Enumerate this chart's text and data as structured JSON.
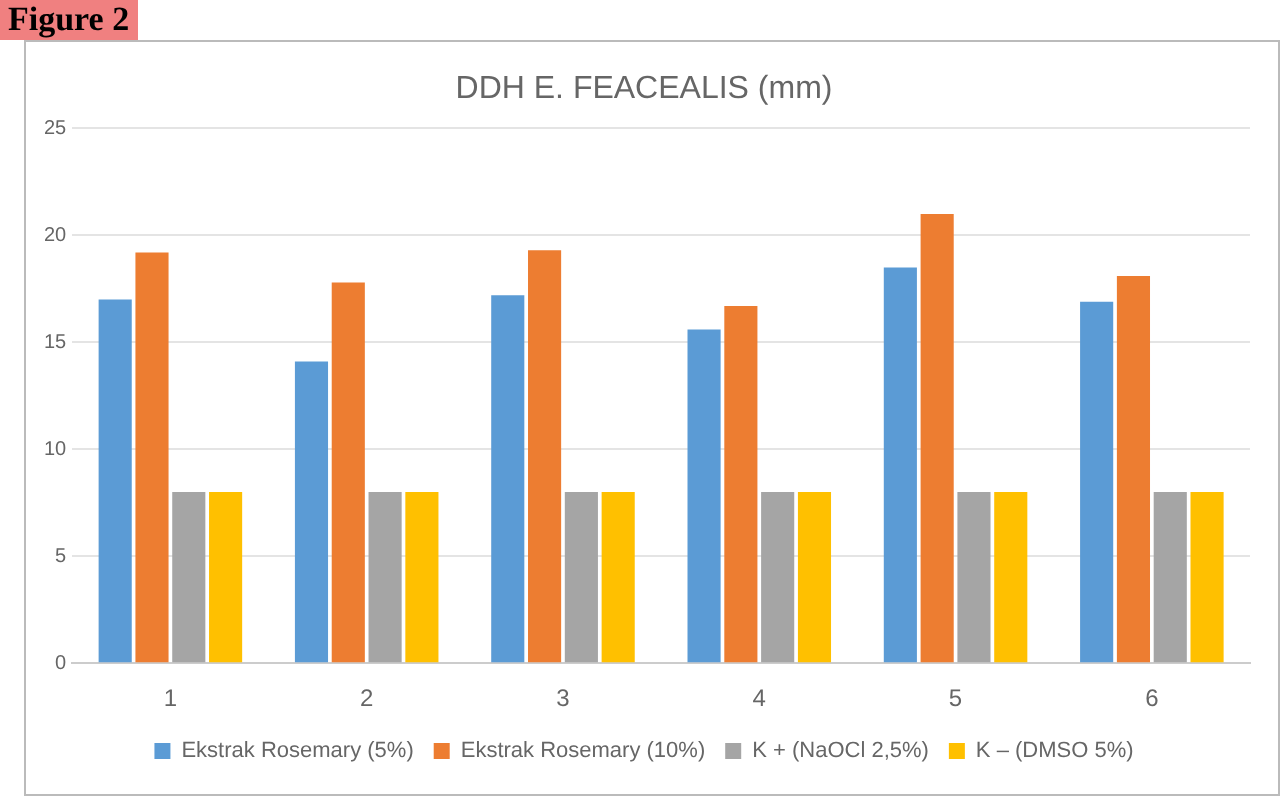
{
  "chart_data": {
    "type": "bar",
    "title": "DDH E. FEACEALIS (mm)",
    "annotations": [
      "Figure 2"
    ],
    "categories": [
      "1",
      "2",
      "3",
      "4",
      "5",
      "6"
    ],
    "series": [
      {
        "name": "Ekstrak Rosemary (5%)",
        "color": "#5b9bd5",
        "values": [
          17,
          14.1,
          17.2,
          15.6,
          18.5,
          16.9
        ]
      },
      {
        "name": "Ekstrak Rosemary (10%)",
        "color": "#ed7d31",
        "values": [
          19.2,
          17.8,
          19.3,
          16.7,
          21,
          18.1
        ]
      },
      {
        "name": "K + (NaOCl 2,5%)",
        "color": "#a5a5a5",
        "values": [
          8,
          8,
          8,
          8,
          8,
          8
        ]
      },
      {
        "name": "K – (DMSO 5%)",
        "color": "#ffc000",
        "values": [
          8,
          8,
          8,
          8,
          8,
          8
        ]
      }
    ],
    "ylim": [
      0,
      25
    ],
    "yticks": [
      0,
      5,
      10,
      15,
      20,
      25
    ],
    "grid": "y",
    "legend": "bottom"
  }
}
